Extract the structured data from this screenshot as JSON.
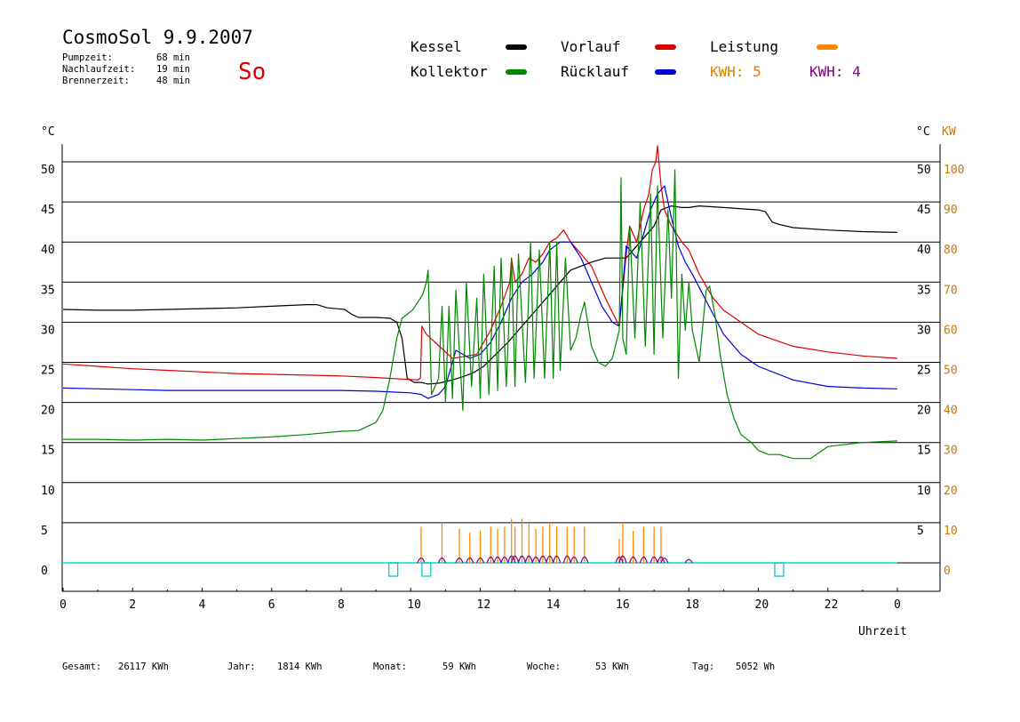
{
  "header": {
    "title": "CosmoSol 9.9.2007",
    "weekday": "So",
    "stats": [
      {
        "label": "Pumpzeit:",
        "value": "68 min"
      },
      {
        "label": "Nachlaufzeit:",
        "value": "19 min"
      },
      {
        "label": "Brennerzeit:",
        "value": "48 min"
      }
    ]
  },
  "legend": [
    {
      "name": "Kessel",
      "color": "#000000"
    },
    {
      "name": "Vorlauf",
      "color": "#dd0000"
    },
    {
      "name": "Leistung",
      "color": "#ff8800"
    },
    {
      "name": "Kollektor",
      "color": "#008800"
    },
    {
      "name": "Rücklauf",
      "color": "#0000dd"
    },
    {
      "name": "KWH: 5",
      "color": "#e08000"
    },
    {
      "name": "KWH: 4",
      "color": "#800080"
    }
  ],
  "axes": {
    "left_unit": "°C",
    "right_unit_c": "°C",
    "right_unit_kw": "KW",
    "x_label": "Uhrzeit",
    "x_ticks": [
      "0",
      "2",
      "4",
      "6",
      "8",
      "10",
      "12",
      "14",
      "16",
      "18",
      "20",
      "22",
      "0"
    ],
    "y_ticks_left": [
      "0",
      "5",
      "10",
      "15",
      "20",
      "25",
      "30",
      "35",
      "40",
      "45",
      "50"
    ],
    "y_ticks_right_c": [
      "5",
      "10",
      "15",
      "20",
      "25",
      "30",
      "35",
      "40",
      "45",
      "50"
    ],
    "y_ticks_right_kw": [
      "0",
      "10",
      "20",
      "30",
      "40",
      "50",
      "60",
      "70",
      "80",
      "90",
      "100"
    ]
  },
  "footer": [
    {
      "label": "Gesamt:",
      "value": "26117 KWh"
    },
    {
      "label": "Jahr:",
      "value": "1814 KWh"
    },
    {
      "label": "Monat:",
      "value": "59 KWh"
    },
    {
      "label": "Woche:",
      "value": "53 KWh"
    },
    {
      "label": "Tag:",
      "value": "5052 Wh"
    }
  ],
  "chart_data": {
    "type": "line",
    "xlim": [
      0,
      24
    ],
    "ylim": [
      0,
      50
    ],
    "y2lim": [
      0,
      100
    ],
    "grid": true,
    "series": [
      {
        "name": "Kessel",
        "color": "#000000",
        "x": [
          0,
          1,
          2,
          3,
          4,
          5,
          6,
          7,
          7.3,
          7.6,
          8.1,
          8.3,
          8.5,
          9,
          9.4,
          9.6,
          9.75,
          9.9,
          10.1,
          10.3,
          10.5,
          10.8,
          11.2,
          11.5,
          11.8,
          12.1,
          12.4,
          12.8,
          13.1,
          13.4,
          13.7,
          14,
          14.3,
          14.6,
          14.9,
          15.2,
          15.6,
          16,
          16.2,
          16.5,
          16.8,
          17,
          17.2,
          17.5,
          17.8,
          18,
          18.3,
          19,
          20,
          20.2,
          20.4,
          20.6,
          21,
          22,
          23,
          24
        ],
        "y": [
          31.6,
          31.5,
          31.5,
          31.6,
          31.7,
          31.8,
          32,
          32.2,
          32.2,
          31.8,
          31.6,
          31,
          30.6,
          30.6,
          30.5,
          30,
          28,
          23,
          22.5,
          22.5,
          22.3,
          22.4,
          22.8,
          23.2,
          23.7,
          24.5,
          25.8,
          27.5,
          29,
          30.5,
          32,
          33.5,
          35,
          36.5,
          37,
          37.5,
          38,
          38,
          38,
          39.5,
          41,
          42,
          44,
          44.5,
          44.3,
          44.3,
          44.5,
          44.3,
          44,
          43.8,
          42.5,
          42.2,
          41.8,
          41.5,
          41.3,
          41.2
        ]
      },
      {
        "name": "Vorlauf",
        "color": "#dd0000",
        "x": [
          0,
          1,
          2,
          3,
          4,
          5,
          6,
          7,
          8,
          9,
          10.2,
          10.28,
          10.32,
          10.45,
          10.7,
          10.95,
          11.2,
          11.5,
          11.9,
          12.3,
          12.6,
          12.85,
          12.9,
          13,
          13.2,
          13.4,
          13.6,
          13.8,
          14,
          14.2,
          14.4,
          14.6,
          14.8,
          15,
          15.2,
          15.6,
          16,
          16.2,
          16.3,
          16.5,
          16.7,
          16.85,
          16.95,
          17.05,
          17.1,
          17.2,
          17.3,
          17.5,
          17.8,
          18,
          18.3,
          18.7,
          19,
          19.5,
          20,
          21,
          22,
          23,
          24
        ],
        "y": [
          24.8,
          24.5,
          24.2,
          24,
          23.8,
          23.6,
          23.5,
          23.4,
          23.3,
          23.1,
          22.8,
          23,
          29.5,
          28.5,
          27.5,
          26.5,
          25.5,
          25.7,
          26,
          29,
          32,
          35,
          38,
          35,
          36,
          38,
          37.5,
          38.5,
          40,
          40.5,
          41.5,
          40,
          39,
          38,
          37,
          33,
          29.5,
          38.5,
          42,
          40,
          44,
          46,
          49,
          50,
          52,
          47,
          44,
          42,
          40,
          39,
          36,
          33,
          31.5,
          30,
          28.5,
          27,
          26.3,
          25.8,
          25.5
        ]
      },
      {
        "name": "Rücklauf",
        "color": "#0000dd",
        "x": [
          0,
          1,
          2,
          3,
          4,
          5,
          6,
          7,
          8,
          9,
          10,
          10.3,
          10.5,
          10.8,
          11,
          11.3,
          11.7,
          12,
          12.3,
          12.6,
          12.9,
          13.2,
          13.5,
          13.8,
          14,
          14.3,
          14.6,
          14.9,
          15.2,
          15.5,
          15.8,
          16,
          16.2,
          16.5,
          16.7,
          16.9,
          17.1,
          17.3,
          17.5,
          17.7,
          17.9,
          18.1,
          18.4,
          18.7,
          19,
          19.5,
          20,
          21,
          22,
          23,
          24
        ],
        "y": [
          21.8,
          21.7,
          21.6,
          21.5,
          21.5,
          21.5,
          21.5,
          21.5,
          21.5,
          21.4,
          21.2,
          21,
          20.5,
          21,
          22,
          26.5,
          25.5,
          26,
          27.5,
          30,
          33,
          35,
          36,
          37.5,
          39,
          40,
          40,
          38,
          35,
          32,
          30,
          29.5,
          39.5,
          38,
          41,
          44,
          46,
          47,
          43,
          39.5,
          37.5,
          36,
          33.5,
          31,
          28.5,
          26,
          24.5,
          22.8,
          22,
          21.8,
          21.7
        ]
      },
      {
        "name": "Kollektor",
        "color": "#008800",
        "x": [
          0,
          1,
          2,
          3,
          4,
          5,
          6,
          7,
          8,
          8.5,
          9,
          9.2,
          9.4,
          9.6,
          9.75,
          9.9,
          10.05,
          10.2,
          10.35,
          10.45,
          10.5,
          10.6,
          10.8,
          10.9,
          11,
          11.1,
          11.2,
          11.3,
          11.5,
          11.6,
          11.75,
          11.9,
          12,
          12.1,
          12.25,
          12.4,
          12.5,
          12.6,
          12.75,
          12.9,
          13,
          13.1,
          13.3,
          13.45,
          13.55,
          13.7,
          13.85,
          14,
          14.1,
          14.2,
          14.3,
          14.45,
          14.6,
          14.75,
          14.9,
          15,
          15.2,
          15.4,
          15.6,
          15.8,
          16,
          16.05,
          16.1,
          16.2,
          16.3,
          16.45,
          16.6,
          16.75,
          16.9,
          17,
          17.1,
          17.25,
          17.4,
          17.5,
          17.6,
          17.7,
          17.8,
          17.9,
          18,
          18.1,
          18.3,
          18.5,
          18.6,
          18.75,
          18.9,
          19.1,
          19.3,
          19.5,
          19.8,
          20,
          20.3,
          20.6,
          21,
          21.5,
          22,
          23,
          24
        ],
        "y": [
          15.4,
          15.4,
          15.3,
          15.4,
          15.3,
          15.5,
          15.7,
          16,
          16.4,
          16.5,
          17.5,
          19,
          23,
          28,
          30.5,
          31,
          31.5,
          32.5,
          33.5,
          35,
          36.5,
          21,
          23,
          32,
          20,
          32,
          20.5,
          34,
          19,
          35,
          22,
          33,
          20.5,
          36,
          21,
          37,
          21.5,
          38,
          22,
          38,
          22,
          38.5,
          22.5,
          40,
          23,
          39,
          23,
          40,
          23,
          40,
          24,
          38,
          26.5,
          28,
          31,
          32.5,
          27,
          25,
          24.5,
          25.5,
          29,
          48,
          28,
          26,
          42,
          28,
          45,
          27,
          46,
          26,
          47,
          28,
          44,
          33,
          49,
          23,
          36,
          29,
          35,
          29,
          25,
          34,
          34.5,
          31,
          26,
          21,
          18,
          16,
          15,
          14,
          13.5,
          13.5,
          13,
          13,
          14.5,
          15,
          15.2
        ]
      }
    ],
    "power": {
      "name": "Leistung",
      "color": "#ff8800",
      "spikes_x": [
        10.3,
        10.9,
        11.4,
        11.7,
        12,
        12.3,
        12.5,
        12.7,
        12.9,
        13,
        13.2,
        13.4,
        13.6,
        13.8,
        14,
        14.2,
        14.5,
        14.7,
        15,
        16,
        16.1,
        16.4,
        16.7,
        17,
        17.2
      ],
      "spikes_kw": [
        9,
        10,
        8.5,
        7.5,
        8,
        9,
        8.5,
        9,
        11,
        9,
        11,
        10,
        8.5,
        9,
        10,
        9,
        9,
        9,
        9,
        6,
        10,
        8,
        9,
        9,
        9
      ]
    },
    "energy": {
      "name": "KWH: 4",
      "color": "#800080",
      "spikes_x": [
        10.3,
        10.9,
        11.4,
        11.7,
        12,
        12.3,
        12.5,
        12.7,
        12.9,
        13,
        13.2,
        13.4,
        13.6,
        13.8,
        14,
        14.2,
        14.5,
        14.7,
        15,
        16,
        16.1,
        16.4,
        16.7,
        17,
        17.2,
        17.3,
        18
      ],
      "spikes_kw": [
        1.5,
        1.5,
        1.5,
        1.5,
        1.5,
        2,
        2,
        2,
        2.5,
        2.5,
        2.5,
        2.5,
        2,
        2.5,
        2.5,
        2.5,
        2.5,
        2,
        2,
        2,
        2.5,
        2,
        2,
        2,
        2,
        1.5,
        0.8
      ]
    },
    "pump_markers_x": [
      9.5,
      10.45,
      20.6
    ]
  }
}
